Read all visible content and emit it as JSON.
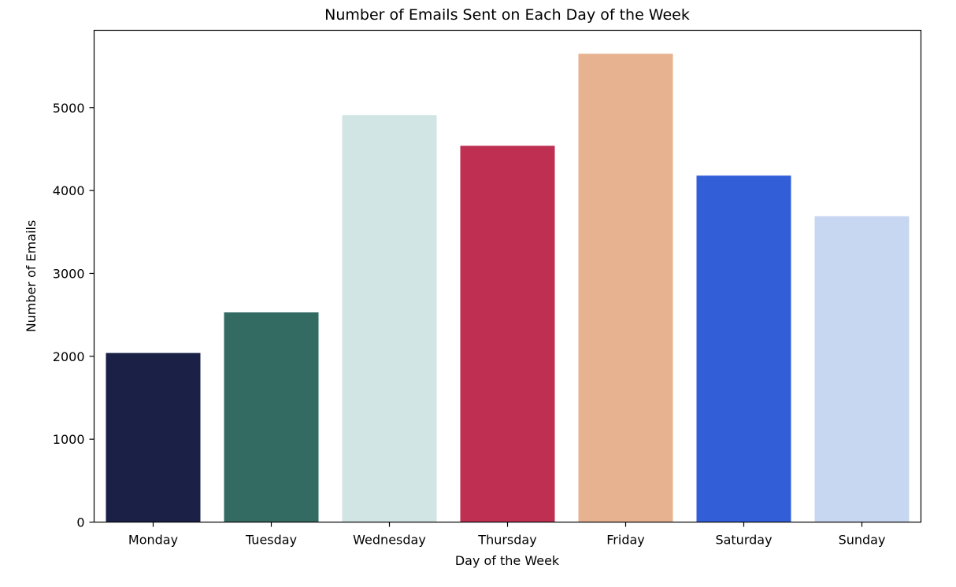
{
  "chart_data": {
    "type": "bar",
    "title": "Number of Emails Sent on Each Day of the Week",
    "xlabel": "Day of the Week",
    "ylabel": "Number of Emails",
    "categories": [
      "Monday",
      "Tuesday",
      "Wednesday",
      "Thursday",
      "Friday",
      "Saturday",
      "Sunday"
    ],
    "values": [
      2040,
      2530,
      4910,
      4540,
      5650,
      4180,
      3690
    ],
    "colors": [
      "#1a2046",
      "#336b63",
      "#d1e5e4",
      "#be2f52",
      "#e6b290",
      "#325ed8",
      "#c7d7f1"
    ],
    "ylim": [
      0,
      5933
    ],
    "yticks": [
      0,
      1000,
      2000,
      3000,
      4000,
      5000
    ],
    "grid": false,
    "legend": "none"
  }
}
